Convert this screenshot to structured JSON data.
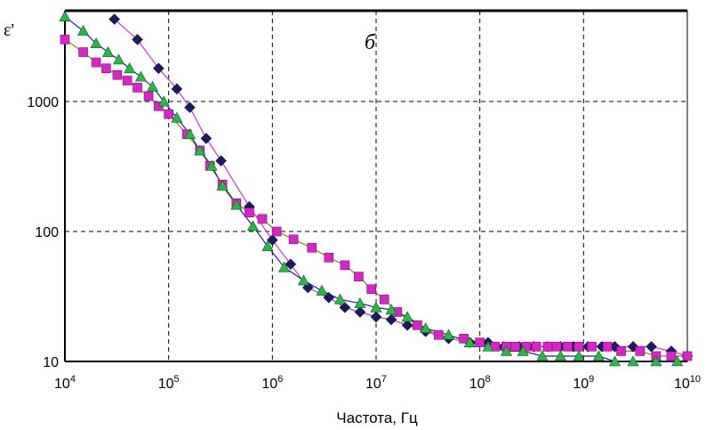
{
  "chart_data": {
    "type": "scatter",
    "title": "",
    "panel_label": "б",
    "xlabel": "Частота, Гц",
    "ylabel": "ε'",
    "x_scale": "log",
    "y_scale": "log",
    "xlim": [
      10000,
      10000000000
    ],
    "ylim": [
      10,
      5000
    ],
    "x_ticks": [
      {
        "value": 10000,
        "base": "10",
        "exp": "4"
      },
      {
        "value": 100000,
        "base": "10",
        "exp": "5"
      },
      {
        "value": 1000000,
        "base": "10",
        "exp": "6"
      },
      {
        "value": 10000000,
        "base": "10",
        "exp": "7"
      },
      {
        "value": 100000000,
        "base": "10",
        "exp": "8"
      },
      {
        "value": 1000000000,
        "base": "10",
        "exp": "9"
      },
      {
        "value": 10000000000,
        "base": "10",
        "exp": "10"
      }
    ],
    "y_ticks": [
      {
        "value": 10,
        "label": "10"
      },
      {
        "value": 100,
        "label": "100"
      },
      {
        "value": 1000,
        "label": "1000"
      }
    ],
    "grid": true,
    "legend": "none",
    "series": [
      {
        "marker": "diamond",
        "color": "#1a1a66",
        "line_color": "#cc33cc",
        "x": [
          30000,
          50000,
          80000,
          120000,
          160000,
          230000,
          320000,
          600000,
          1000000,
          1500000,
          2200000,
          3500000,
          5000000,
          7000000,
          10000000,
          14000000,
          20000000,
          30000000,
          50000000,
          80000000,
          120000000,
          170000000,
          240000000,
          330000000,
          450000000,
          600000000,
          800000000,
          1100000000,
          1500000000,
          2000000000,
          3000000000,
          4500000000,
          7000000000,
          10000000000
        ],
        "y": [
          4300,
          3000,
          1800,
          1250,
          900,
          520,
          350,
          155,
          86,
          56,
          37,
          31,
          26,
          24,
          22,
          21,
          19,
          17,
          15,
          14,
          14,
          13,
          13,
          13,
          13,
          13,
          13,
          13,
          13,
          13,
          13,
          13,
          12,
          11
        ]
      },
      {
        "marker": "square",
        "color": "#dd22cc",
        "line_color": "#8a8a00",
        "x": [
          10000,
          15000,
          20000,
          25000,
          32000,
          40000,
          50000,
          64000,
          80000,
          100000,
          150000,
          200000,
          250000,
          330000,
          450000,
          600000,
          800000,
          1100000,
          1600000,
          2400000,
          3500000,
          5000000,
          6800000,
          9000000,
          12000000,
          16000000,
          25000000,
          40000000,
          70000000,
          100000000,
          140000000,
          180000000,
          220000000,
          280000000,
          350000000,
          450000000,
          550000000,
          700000000,
          900000000,
          1200000000,
          1700000000,
          2300000000,
          3500000000,
          5000000000,
          7000000000,
          10000000000
        ],
        "y": [
          3000,
          2400,
          2000,
          1800,
          1600,
          1450,
          1280,
          1100,
          920,
          800,
          560,
          420,
          320,
          230,
          165,
          140,
          125,
          100,
          87,
          75,
          63,
          55,
          45,
          36,
          30,
          24,
          19,
          16,
          15,
          14,
          13,
          13,
          13,
          13,
          13,
          13,
          13,
          13,
          13,
          13,
          13,
          12,
          12,
          11,
          11,
          11
        ]
      },
      {
        "marker": "triangle",
        "color": "#22bb44",
        "line_color": "#22229a",
        "x": [
          10000,
          15000,
          20000,
          26000,
          33000,
          42000,
          54000,
          70000,
          90000,
          120000,
          160000,
          200000,
          260000,
          330000,
          450000,
          650000,
          900000,
          1300000,
          2000000,
          3000000,
          4500000,
          7000000,
          10000000,
          14000000,
          20000000,
          30000000,
          50000000,
          80000000,
          120000000,
          180000000,
          260000000,
          400000000,
          600000000,
          900000000,
          1400000000,
          2000000000,
          3000000000,
          5000000000,
          8000000000
        ],
        "y": [
          4500,
          3500,
          2800,
          2400,
          2100,
          1800,
          1550,
          1300,
          1000,
          750,
          560,
          420,
          320,
          225,
          160,
          110,
          77,
          53,
          42,
          35,
          30,
          28,
          26,
          25,
          22,
          18,
          16,
          14,
          13,
          12,
          12,
          11,
          11,
          11,
          11,
          10,
          10,
          10,
          10
        ]
      }
    ]
  }
}
